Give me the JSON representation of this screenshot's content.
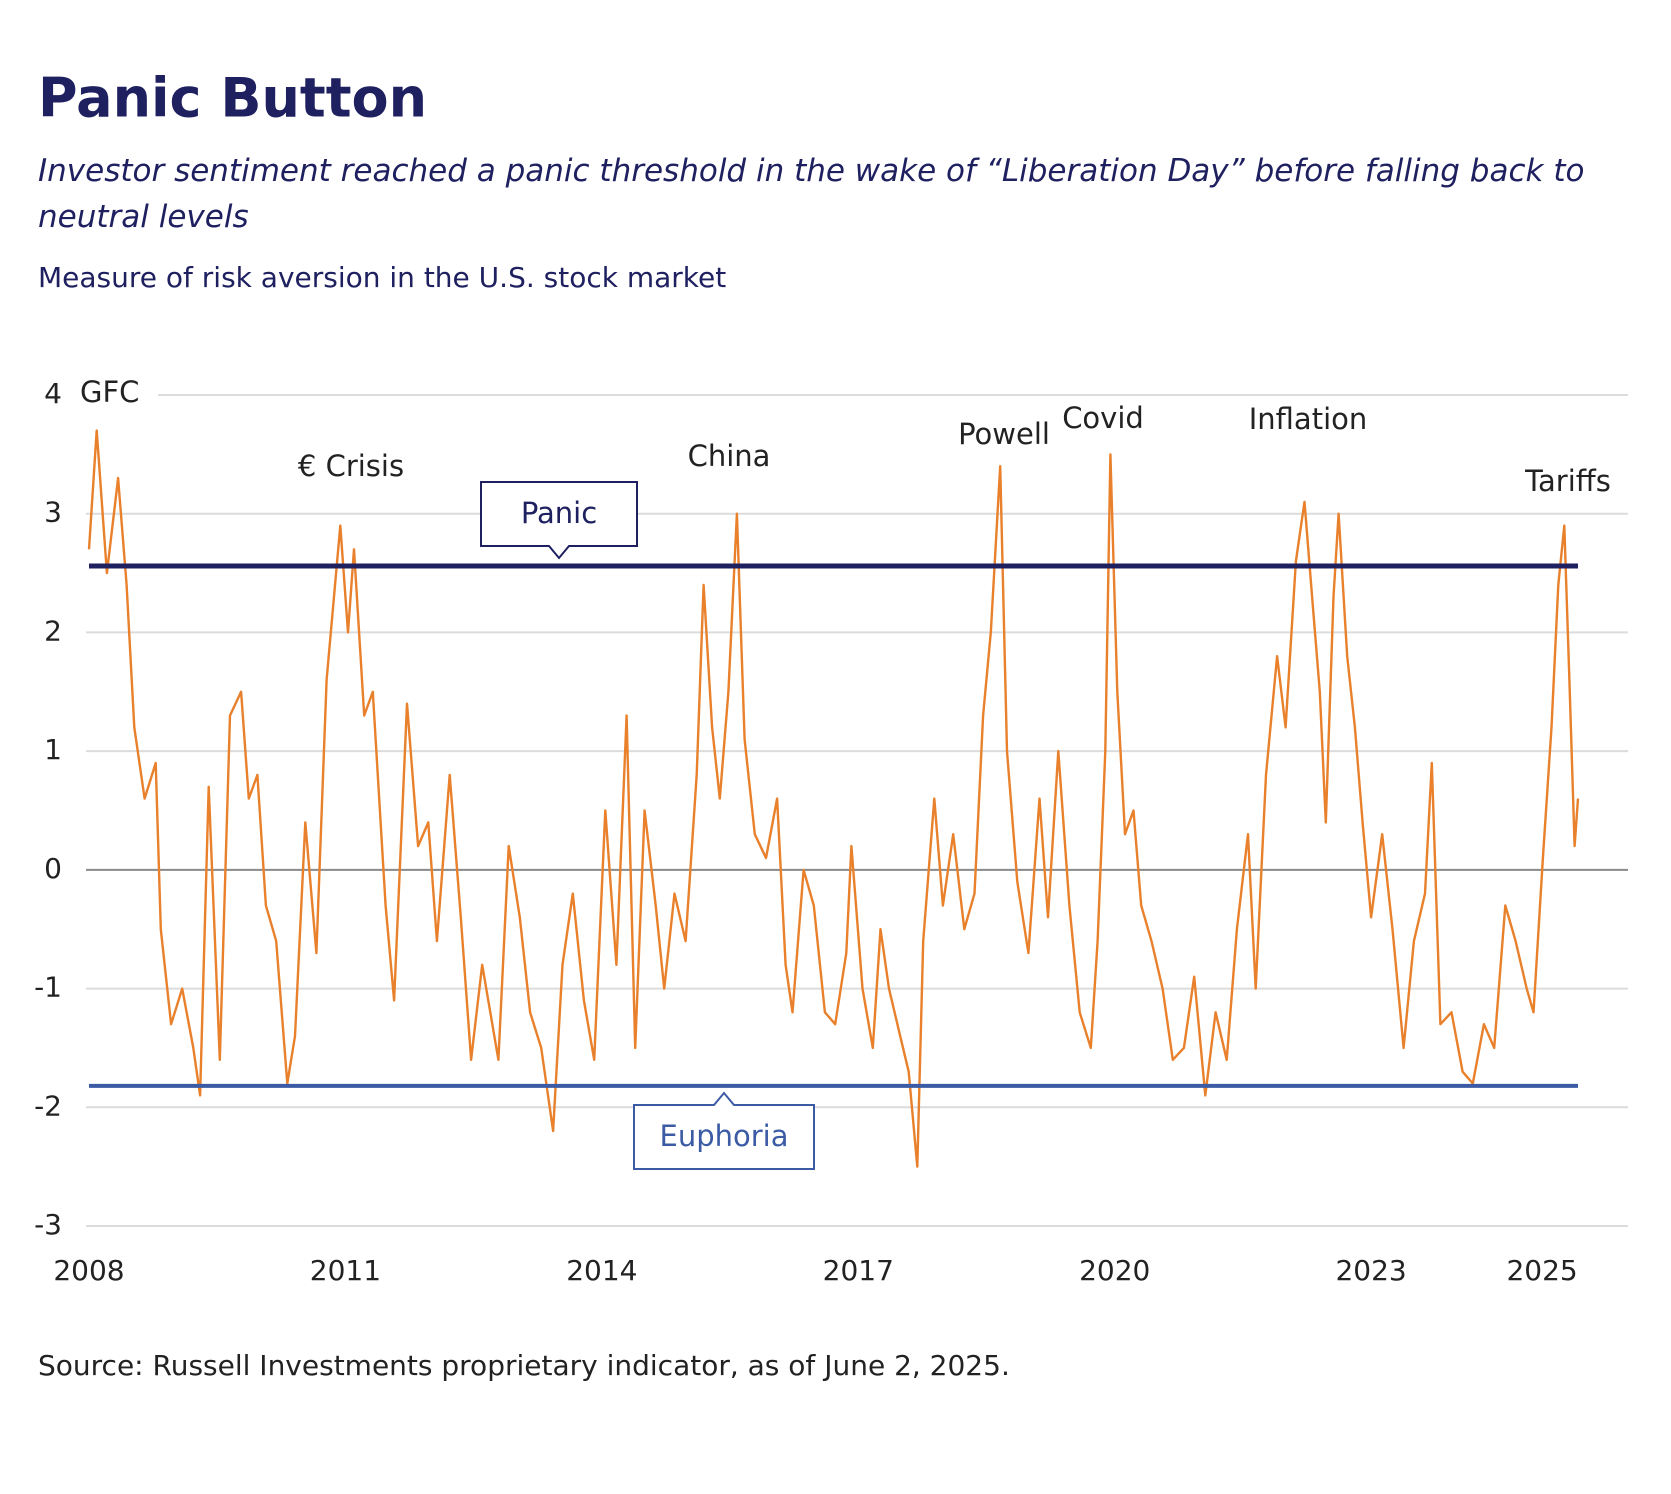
{
  "chart_data": {
    "type": "line",
    "title": "Panic Button",
    "subtitle": "Investor sentiment reached a panic threshold in the wake of “Liberation Day” before falling back to neutral levels",
    "y_label": "Measure of risk aversion in the U.S. stock market",
    "source": "Source: Russell Investments proprietary indicator, as of June 2, 2025.",
    "xlim": [
      2008,
      2025.9
    ],
    "xticks": [
      2008,
      2011,
      2014,
      2017,
      2020,
      2023,
      2025
    ],
    "ylim": [
      -3,
      4
    ],
    "yticks": [
      4,
      3,
      2,
      1,
      0,
      -1,
      -2,
      -3
    ],
    "grid": true,
    "x": [
      2008.0,
      2008.09,
      2008.21,
      2008.34,
      2008.44,
      2008.53,
      2008.65,
      2008.78,
      2008.84,
      2008.96,
      2009.09,
      2009.22,
      2009.3,
      2009.4,
      2009.53,
      2009.65,
      2009.78,
      2009.87,
      2009.97,
      2010.07,
      2010.19,
      2010.32,
      2010.41,
      2010.53,
      2010.66,
      2010.78,
      2010.94,
      2011.03,
      2011.1,
      2011.22,
      2011.32,
      2011.47,
      2011.57,
      2011.72,
      2011.85,
      2011.97,
      2012.07,
      2012.22,
      2012.35,
      2012.47,
      2012.6,
      2012.79,
      2012.91,
      2013.04,
      2013.16,
      2013.29,
      2013.43,
      2013.54,
      2013.66,
      2013.79,
      2013.91,
      2014.04,
      2014.17,
      2014.29,
      2014.39,
      2014.5,
      2014.63,
      2014.73,
      2014.85,
      2014.98,
      2015.11,
      2015.19,
      2015.29,
      2015.38,
      2015.48,
      2015.58,
      2015.67,
      2015.79,
      2015.92,
      2016.05,
      2016.15,
      2016.23,
      2016.36,
      2016.48,
      2016.61,
      2016.73,
      2016.86,
      2016.92,
      2017.05,
      2017.17,
      2017.26,
      2017.36,
      2017.49,
      2017.59,
      2017.69,
      2017.76,
      2017.89,
      2017.99,
      2018.11,
      2018.24,
      2018.36,
      2018.46,
      2018.55,
      2018.66,
      2018.74,
      2018.86,
      2018.99,
      2019.12,
      2019.22,
      2019.34,
      2019.47,
      2019.59,
      2019.72,
      2019.8,
      2019.89,
      2019.95,
      2020.03,
      2020.12,
      2020.22,
      2020.31,
      2020.43,
      2020.56,
      2020.68,
      2020.81,
      2020.93,
      2021.06,
      2021.18,
      2021.31,
      2021.43,
      2021.56,
      2021.65,
      2021.77,
      2021.9,
      2022.0,
      2022.12,
      2022.22,
      2022.31,
      2022.4,
      2022.47,
      2022.56,
      2022.62,
      2022.72,
      2022.81,
      2022.9,
      2023.0,
      2023.13,
      2023.25,
      2023.38,
      2023.5,
      2023.63,
      2023.71,
      2023.81,
      2023.94,
      2024.07,
      2024.19,
      2024.32,
      2024.44,
      2024.57,
      2024.69,
      2024.82,
      2024.9,
      2025.01,
      2025.11,
      2025.19,
      2025.26,
      2025.32,
      2025.38,
      2025.42
    ],
    "series": [
      {
        "name": "Risk aversion",
        "color": "#e8802c",
        "values": [
          2.7,
          3.7,
          2.5,
          3.3,
          2.4,
          1.2,
          0.6,
          0.9,
          -0.5,
          -1.3,
          -1.0,
          -1.5,
          -1.9,
          0.7,
          -1.6,
          1.3,
          1.5,
          0.6,
          0.8,
          -0.3,
          -0.6,
          -1.8,
          -1.4,
          0.4,
          -0.7,
          1.6,
          2.9,
          2.0,
          2.7,
          1.3,
          1.5,
          -0.3,
          -1.1,
          1.4,
          0.2,
          0.4,
          -0.6,
          0.8,
          -0.4,
          -1.6,
          -0.8,
          -1.6,
          0.2,
          -0.4,
          -1.2,
          -1.5,
          -2.2,
          -0.8,
          -0.2,
          -1.1,
          -1.6,
          0.5,
          -0.8,
          1.3,
          -1.5,
          0.5,
          -0.3,
          -1.0,
          -0.2,
          -0.6,
          0.8,
          2.4,
          1.2,
          0.6,
          1.5,
          3.0,
          1.1,
          0.3,
          0.1,
          0.6,
          -0.8,
          -1.2,
          0.0,
          -0.3,
          -1.2,
          -1.3,
          -0.7,
          0.2,
          -1.0,
          -1.5,
          -0.5,
          -1.0,
          -1.4,
          -1.7,
          -2.5,
          -0.6,
          0.6,
          -0.3,
          0.3,
          -0.5,
          -0.2,
          1.3,
          2.0,
          3.4,
          1.0,
          -0.1,
          -0.7,
          0.6,
          -0.4,
          1.0,
          -0.3,
          -1.2,
          -1.5,
          -0.6,
          1.0,
          3.5,
          1.5,
          0.3,
          0.5,
          -0.3,
          -0.6,
          -1.0,
          -1.6,
          -1.5,
          -0.9,
          -1.9,
          -1.2,
          -1.6,
          -0.5,
          0.3,
          -1.0,
          0.8,
          1.8,
          1.2,
          2.6,
          3.1,
          2.3,
          1.5,
          0.4,
          2.3,
          3.0,
          1.8,
          1.2,
          0.4,
          -0.4,
          0.3,
          -0.5,
          -1.5,
          -0.6,
          -0.2,
          0.9,
          -1.3,
          -1.2,
          -1.7,
          -1.8,
          -1.3,
          -1.5,
          -0.3,
          -0.6,
          -1.0,
          -1.2,
          0.1,
          1.2,
          2.4,
          2.9,
          1.6,
          0.2,
          0.6
        ]
      }
    ],
    "thresholds": [
      {
        "name": "Panic",
        "value": 2.56,
        "color": "#1f2060"
      },
      {
        "name": "Euphoria",
        "value": -1.82,
        "color": "#3b5ba5"
      }
    ],
    "annotations": [
      "GFC",
      "€ Crisis",
      "China",
      "Powell",
      "Covid",
      "Inflation",
      "Tariffs"
    ]
  }
}
